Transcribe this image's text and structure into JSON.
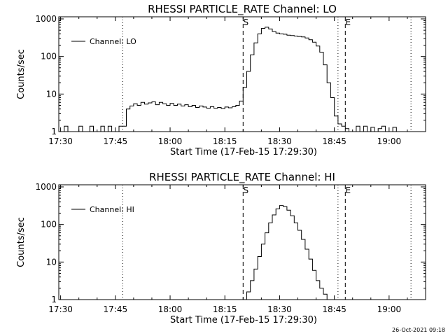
{
  "chart_data": [
    {
      "type": "line",
      "title": "RHESSI PARTICLE_RATE Channel: LO",
      "xlabel": "Start Time (17-Feb-15 17:29:30)",
      "ylabel": "Counts/sec",
      "yscale": "log",
      "ylim": [
        1,
        1000
      ],
      "xlim": [
        "17:29:30",
        "19:10:00"
      ],
      "x_ticks": [
        "17:30",
        "17:45",
        "18:00",
        "18:15",
        "18:30",
        "18:45",
        "19:00"
      ],
      "y_ticks": [
        "1",
        "10",
        "100",
        "1000"
      ],
      "legend": {
        "label": "Channel: LO",
        "position": "top-left"
      },
      "markers": [
        {
          "label": "S",
          "time": "18:20",
          "style": "dashed"
        },
        {
          "label": "E",
          "time": "18:48",
          "style": "dashed"
        }
      ],
      "dotted_lines": [
        "17:47",
        "18:46",
        "19:06"
      ],
      "series": [
        {
          "name": "Channel: LO",
          "x": [
            "17:30",
            "17:31",
            "17:32",
            "17:33",
            "17:34",
            "17:35",
            "17:36",
            "17:37",
            "17:38",
            "17:39",
            "17:40",
            "17:41",
            "17:42",
            "17:43",
            "17:44",
            "17:45",
            "17:46",
            "17:47",
            "17:48",
            "17:49",
            "17:50",
            "17:51",
            "17:52",
            "17:53",
            "17:54",
            "17:55",
            "17:56",
            "17:57",
            "17:58",
            "17:59",
            "18:00",
            "18:01",
            "18:02",
            "18:03",
            "18:04",
            "18:05",
            "18:06",
            "18:07",
            "18:08",
            "18:09",
            "18:10",
            "18:11",
            "18:12",
            "18:13",
            "18:14",
            "18:15",
            "18:16",
            "18:17",
            "18:18",
            "18:19",
            "18:20",
            "18:21",
            "18:22",
            "18:23",
            "18:24",
            "18:25",
            "18:26",
            "18:27",
            "18:28",
            "18:29",
            "18:30",
            "18:31",
            "18:32",
            "18:33",
            "18:34",
            "18:35",
            "18:36",
            "18:37",
            "18:38",
            "18:39",
            "18:40",
            "18:41",
            "18:42",
            "18:43",
            "18:44",
            "18:45",
            "18:46",
            "18:47",
            "18:48",
            "18:49",
            "18:50",
            "18:51",
            "18:52",
            "18:53",
            "18:54",
            "18:55",
            "18:56",
            "18:57",
            "18:58",
            "18:59",
            "19:00",
            "19:01",
            "19:02",
            "19:03"
          ],
          "y": [
            1,
            1.4,
            1,
            1,
            1,
            1.4,
            1,
            1,
            1.4,
            1,
            1,
            1.4,
            1,
            1.4,
            1,
            1,
            1.4,
            1.4,
            4,
            4.8,
            5.5,
            5,
            6,
            5.4,
            5.8,
            6.2,
            5.2,
            6,
            5.5,
            5,
            5.6,
            5,
            5.4,
            4.8,
            5.2,
            4.6,
            5,
            4.4,
            4.8,
            4.5,
            4.2,
            4.6,
            4.2,
            4.4,
            4.1,
            4.5,
            4.3,
            4.6,
            5,
            6.5,
            15,
            40,
            110,
            230,
            400,
            560,
            600,
            540,
            460,
            420,
            400,
            390,
            370,
            360,
            350,
            340,
            330,
            310,
            280,
            240,
            190,
            130,
            60,
            20,
            8,
            2.6,
            1.6,
            1.4,
            1.2,
            1,
            1,
            1.4,
            1,
            1.4,
            1,
            1.3,
            1,
            1.2,
            1.4,
            1,
            1,
            1.3,
            1,
            1
          ]
        }
      ]
    },
    {
      "type": "line",
      "title": "RHESSI PARTICLE_RATE Channel: HI",
      "xlabel": "Start Time (17-Feb-15 17:29:30)",
      "ylabel": "Counts/sec",
      "yscale": "log",
      "ylim": [
        1,
        1000
      ],
      "xlim": [
        "17:29:30",
        "19:10:00"
      ],
      "x_ticks": [
        "17:30",
        "17:45",
        "18:00",
        "18:15",
        "18:30",
        "18:45",
        "19:00"
      ],
      "y_ticks": [
        "1",
        "10",
        "100",
        "1000"
      ],
      "legend": {
        "label": "Channel: HI",
        "position": "top-left"
      },
      "markers": [
        {
          "label": "S",
          "time": "18:20",
          "style": "dashed"
        },
        {
          "label": "E",
          "time": "18:48",
          "style": "dashed"
        }
      ],
      "dotted_lines": [
        "17:47",
        "18:46",
        "19:06"
      ],
      "series": [
        {
          "name": "Channel: HI",
          "x": [
            "18:20",
            "18:21",
            "18:22",
            "18:23",
            "18:24",
            "18:25",
            "18:26",
            "18:27",
            "18:28",
            "18:29",
            "18:30",
            "18:31",
            "18:32",
            "18:33",
            "18:34",
            "18:35",
            "18:36",
            "18:37",
            "18:38",
            "18:39",
            "18:40",
            "18:41",
            "18:42",
            "18:43"
          ],
          "y": [
            1,
            1.6,
            3.2,
            6.5,
            14,
            30,
            60,
            110,
            180,
            260,
            320,
            300,
            240,
            170,
            110,
            70,
            40,
            22,
            12,
            6,
            3.2,
            2,
            1.4,
            1
          ]
        }
      ]
    }
  ],
  "timestamp": "26-Oct-2021 09:18"
}
